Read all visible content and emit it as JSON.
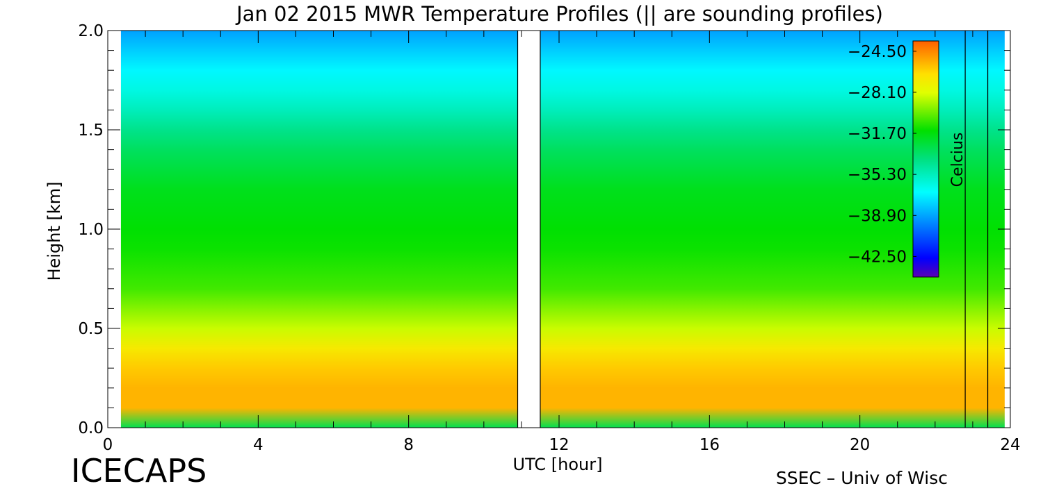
{
  "chart_data": {
    "type": "heatmap",
    "title": "Jan 02 2015 MWR Temperature Profiles (|| are sounding profiles)",
    "xlabel": "UTC [hour]",
    "ylabel": "Height [km]",
    "xlim": [
      0,
      24
    ],
    "ylim": [
      0.0,
      2.0
    ],
    "x_ticks": [
      "0",
      "4",
      "8",
      "12",
      "16",
      "20",
      "24"
    ],
    "y_ticks": [
      "0.0",
      "0.5",
      "1.0",
      "1.5",
      "2.0"
    ],
    "data_start_hour": 0.35,
    "data_end_hour": 23.85,
    "data_gap_hours": [
      10.9,
      11.5
    ],
    "colorbar": {
      "label": "Celcius",
      "range": [
        -44.3,
        -23.6
      ],
      "ticks": [
        "−24.50",
        "−28.10",
        "−31.70",
        "−35.30",
        "−38.90",
        "−42.50"
      ],
      "tick_values": [
        -24.5,
        -28.1,
        -31.7,
        -35.3,
        -38.9,
        -42.5
      ],
      "colormap": "rainbow"
    },
    "sounding_profiles_hours": [
      10.9,
      11.5,
      22.8,
      23.4
    ],
    "temperature_profile_points": [
      {
        "height_km": 0.0,
        "celsius": -33.0
      },
      {
        "height_km": 0.1,
        "celsius": -25.5
      },
      {
        "height_km": 0.2,
        "celsius": -25.5
      },
      {
        "height_km": 0.3,
        "celsius": -26.0
      },
      {
        "height_km": 0.4,
        "celsius": -27.0
      },
      {
        "height_km": 0.5,
        "celsius": -28.5
      },
      {
        "height_km": 0.7,
        "celsius": -30.5
      },
      {
        "height_km": 0.9,
        "celsius": -31.3
      },
      {
        "height_km": 1.0,
        "celsius": -31.5
      },
      {
        "height_km": 1.2,
        "celsius": -32.0
      },
      {
        "height_km": 1.4,
        "celsius": -33.3
      },
      {
        "height_km": 1.5,
        "celsius": -34.2
      },
      {
        "height_km": 1.6,
        "celsius": -35.3
      },
      {
        "height_km": 1.7,
        "celsius": -36.2
      },
      {
        "height_km": 1.8,
        "celsius": -37.0
      },
      {
        "height_km": 1.9,
        "celsius": -38.0
      },
      {
        "height_km": 2.0,
        "celsius": -39.0
      }
    ],
    "grid": false,
    "legend": "colorbar-top-right-inside"
  },
  "footer": {
    "left": "ICECAPS",
    "right": "SSEC – Univ of Wisc"
  }
}
